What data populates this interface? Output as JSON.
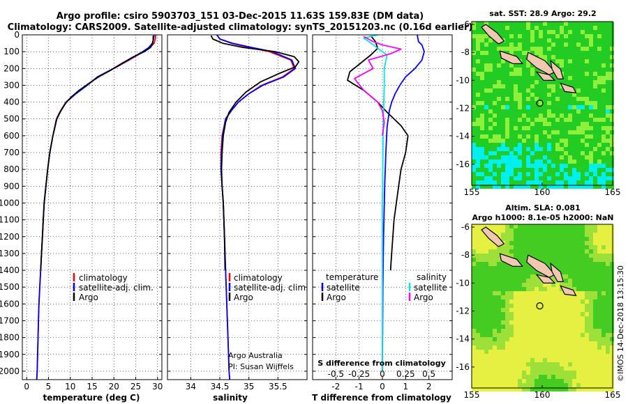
{
  "header": {
    "title_line1": "Argo profile: csiro 5903703_151 03-Dec-2015 11.63S 159.83E (DM data)",
    "title_line2": "Climatology: CARS2009. Satellite-adjusted climatology: synTS_20151203.nc (0.16d earlier)"
  },
  "credits": {
    "line1": "Argo Australia",
    "line2": "PI: Susan Wijffels",
    "imos": "©IMOS 14-Dec-2018 13:15:30"
  },
  "colors": {
    "climatology": "#ff0000",
    "satellite": "#0000ff",
    "argo": "#000000",
    "sal_satellite": "#00e8e8",
    "sal_argo": "#ff00ff"
  },
  "chart_data": [
    {
      "id": "temperature",
      "type": "line",
      "xlabel": "temperature (deg C)",
      "xlim": [
        -1,
        31
      ],
      "xticks": [
        0,
        5,
        10,
        15,
        20,
        25,
        30
      ],
      "ylim": [
        2050,
        0
      ],
      "yticks": [
        0,
        100,
        200,
        300,
        400,
        500,
        600,
        700,
        800,
        900,
        1000,
        1100,
        1200,
        1300,
        1400,
        1500,
        1600,
        1700,
        1800,
        1900,
        2000
      ],
      "grid": true,
      "legend": {
        "position": "lower-center",
        "entries": [
          "climatology",
          "satellite-adj. clim.",
          "Argo"
        ]
      },
      "series": [
        {
          "name": "climatology",
          "color": "#ff0000",
          "points": [
            [
              29.6,
              0
            ],
            [
              29.5,
              25
            ],
            [
              29.2,
              50
            ],
            [
              28.3,
              75
            ],
            [
              26.8,
              100
            ],
            [
              23.5,
              150
            ],
            [
              20.0,
              200
            ],
            [
              16.3,
              250
            ],
            [
              13.8,
              300
            ],
            [
              11.2,
              350
            ],
            [
              9.0,
              400
            ],
            [
              7.8,
              450
            ],
            [
              6.8,
              500
            ],
            [
              6.0,
              600
            ],
            [
              5.3,
              700
            ],
            [
              4.8,
              800
            ],
            [
              4.4,
              900
            ],
            [
              4.0,
              1000
            ],
            [
              3.8,
              1100
            ],
            [
              3.6,
              1200
            ],
            [
              3.4,
              1300
            ],
            [
              3.2,
              1400
            ],
            [
              3.0,
              1500
            ],
            [
              2.8,
              1600
            ],
            [
              2.7,
              1700
            ],
            [
              2.6,
              1800
            ],
            [
              2.5,
              1900
            ],
            [
              2.4,
              2000
            ],
            [
              2.3,
              2050
            ]
          ]
        },
        {
          "name": "satellite-adj. clim.",
          "color": "#0000ff",
          "points": [
            [
              29.2,
              0
            ],
            [
              29.1,
              25
            ],
            [
              28.8,
              50
            ],
            [
              28.0,
              75
            ],
            [
              26.6,
              100
            ],
            [
              23.3,
              150
            ],
            [
              19.9,
              200
            ],
            [
              16.2,
              250
            ],
            [
              13.9,
              300
            ],
            [
              11.3,
              350
            ],
            [
              9.1,
              400
            ],
            [
              7.9,
              450
            ],
            [
              6.9,
              500
            ],
            [
              6.0,
              600
            ],
            [
              5.3,
              700
            ],
            [
              4.8,
              800
            ],
            [
              4.4,
              900
            ],
            [
              4.0,
              1000
            ],
            [
              3.8,
              1100
            ],
            [
              3.6,
              1200
            ],
            [
              3.4,
              1300
            ],
            [
              3.2,
              1400
            ],
            [
              3.0,
              1500
            ],
            [
              2.8,
              1600
            ],
            [
              2.7,
              1700
            ],
            [
              2.6,
              1800
            ],
            [
              2.5,
              1900
            ],
            [
              2.4,
              2000
            ],
            [
              2.3,
              2050
            ]
          ]
        },
        {
          "name": "Argo",
          "color": "#000000",
          "points": [
            [
              29.0,
              5
            ],
            [
              29.0,
              30
            ],
            [
              28.9,
              50
            ],
            [
              28.4,
              75
            ],
            [
              27.0,
              100
            ],
            [
              24.5,
              130
            ],
            [
              21.8,
              170
            ],
            [
              19.3,
              210
            ],
            [
              16.5,
              250
            ],
            [
              14.2,
              290
            ],
            [
              12.0,
              330
            ],
            [
              10.2,
              370
            ],
            [
              8.8,
              410
            ],
            [
              7.6,
              460
            ],
            [
              6.9,
              500
            ],
            [
              6.0,
              600
            ],
            [
              5.3,
              700
            ],
            [
              4.8,
              800
            ],
            [
              4.4,
              900
            ],
            [
              4.0,
              1000
            ],
            [
              3.8,
              1100
            ],
            [
              3.6,
              1200
            ],
            [
              3.4,
              1300
            ],
            [
              3.2,
              1400
            ]
          ]
        }
      ]
    },
    {
      "id": "salinity",
      "type": "line",
      "xlabel": "salinity",
      "xlim": [
        33.6,
        36.0
      ],
      "xticks": [
        34,
        34.5,
        35,
        35.5
      ],
      "xticklabels": [
        "34",
        "34.5",
        "35",
        "35.5"
      ],
      "ylim": [
        2050,
        0
      ],
      "grid": true,
      "legend": {
        "position": "lower-center",
        "entries": [
          "climatology",
          "satellite-adj. clim.",
          "Argo"
        ]
      },
      "series": [
        {
          "name": "climatology",
          "color": "#ff0000",
          "points": [
            [
              34.45,
              0
            ],
            [
              34.5,
              25
            ],
            [
              34.7,
              50
            ],
            [
              35.0,
              75
            ],
            [
              35.35,
              100
            ],
            [
              35.72,
              150
            ],
            [
              35.78,
              200
            ],
            [
              35.58,
              250
            ],
            [
              35.22,
              300
            ],
            [
              35.0,
              350
            ],
            [
              34.82,
              400
            ],
            [
              34.7,
              450
            ],
            [
              34.6,
              500
            ],
            [
              34.54,
              600
            ],
            [
              34.52,
              700
            ],
            [
              34.52,
              800
            ],
            [
              34.54,
              900
            ],
            [
              34.56,
              1000
            ],
            [
              34.58,
              1200
            ],
            [
              34.6,
              1400
            ],
            [
              34.62,
              1600
            ],
            [
              34.64,
              1800
            ],
            [
              34.66,
              2000
            ],
            [
              34.67,
              2050
            ]
          ]
        },
        {
          "name": "satellite-adj. clim.",
          "color": "#0000ff",
          "points": [
            [
              34.45,
              0
            ],
            [
              34.5,
              25
            ],
            [
              34.72,
              50
            ],
            [
              35.05,
              75
            ],
            [
              35.4,
              100
            ],
            [
              35.74,
              150
            ],
            [
              35.8,
              200
            ],
            [
              35.6,
              250
            ],
            [
              35.24,
              300
            ],
            [
              35.0,
              350
            ],
            [
              34.82,
              400
            ],
            [
              34.7,
              450
            ],
            [
              34.6,
              500
            ],
            [
              34.55,
              600
            ],
            [
              34.53,
              700
            ],
            [
              34.52,
              800
            ],
            [
              34.54,
              900
            ],
            [
              34.56,
              1000
            ],
            [
              34.58,
              1200
            ],
            [
              34.6,
              1400
            ],
            [
              34.62,
              1600
            ],
            [
              34.64,
              1800
            ],
            [
              34.66,
              2000
            ],
            [
              34.67,
              2050
            ]
          ]
        },
        {
          "name": "Argo",
          "color": "#000000",
          "points": [
            [
              34.35,
              5
            ],
            [
              34.38,
              25
            ],
            [
              34.55,
              50
            ],
            [
              34.9,
              75
            ],
            [
              35.45,
              100
            ],
            [
              35.78,
              130
            ],
            [
              35.86,
              160
            ],
            [
              35.8,
              190
            ],
            [
              35.52,
              230
            ],
            [
              35.2,
              280
            ],
            [
              34.95,
              340
            ],
            [
              34.78,
              400
            ],
            [
              34.66,
              460
            ],
            [
              34.6,
              520
            ],
            [
              34.56,
              600
            ],
            [
              34.54,
              700
            ],
            [
              34.53,
              800
            ],
            [
              34.54,
              900
            ],
            [
              34.56,
              1000
            ],
            [
              34.58,
              1200
            ],
            [
              34.59,
              1400
            ]
          ]
        }
      ]
    },
    {
      "id": "difference",
      "type": "line",
      "xlabel": "T difference from climatology",
      "xlim": [
        -3,
        3
      ],
      "xticks": [
        -2,
        -1,
        0,
        1,
        2
      ],
      "ylim": [
        2050,
        0
      ],
      "grid": true,
      "top_axis": {
        "label": "S difference from climatology",
        "ticks": [
          -0.5,
          -0.25,
          0,
          0.25,
          0.5
        ],
        "ticklabels": [
          "-0.5",
          "-0.25",
          "0",
          "0.25",
          "0.5"
        ]
      },
      "legend": {
        "position": "lower-center",
        "temperature_header": "temperature",
        "salinity_header": "salinity",
        "entries": [
          "satellite",
          "Argo",
          "satellite",
          "Argo"
        ]
      },
      "series": [
        {
          "name": "satellite",
          "group": "temperature",
          "color": "#0000ff",
          "points": [
            [
              1.5,
              0
            ],
            [
              1.55,
              40
            ],
            [
              1.7,
              60
            ],
            [
              1.8,
              100
            ],
            [
              1.7,
              150
            ],
            [
              1.4,
              200
            ],
            [
              1.0,
              250
            ],
            [
              0.75,
              300
            ],
            [
              0.55,
              350
            ],
            [
              0.4,
              400
            ],
            [
              0.3,
              450
            ],
            [
              0.2,
              550
            ],
            [
              0.15,
              700
            ],
            [
              0.1,
              900
            ],
            [
              0.05,
              1200
            ],
            [
              0.02,
              1500
            ],
            [
              0.0,
              2000
            ]
          ]
        },
        {
          "name": "Argo",
          "group": "temperature",
          "color": "#000000",
          "points": [
            [
              -0.5,
              5
            ],
            [
              -0.3,
              40
            ],
            [
              -0.2,
              80
            ],
            [
              -0.5,
              120
            ],
            [
              -1.4,
              220
            ],
            [
              -1.5,
              270
            ],
            [
              -0.8,
              330
            ],
            [
              -0.2,
              400
            ],
            [
              0.2,
              460
            ],
            [
              0.8,
              540
            ],
            [
              1.1,
              600
            ],
            [
              1.0,
              700
            ],
            [
              0.8,
              800
            ],
            [
              0.7,
              900
            ],
            [
              0.6,
              1000
            ],
            [
              0.5,
              1100
            ],
            [
              0.45,
              1200
            ],
            [
              0.4,
              1300
            ],
            [
              0.35,
              1400
            ]
          ]
        },
        {
          "name": "satellite",
          "group": "salinity",
          "color": "#00e8e8",
          "points": [
            [
              -0.05,
              0
            ],
            [
              -0.2,
              20
            ],
            [
              -0.12,
              50
            ],
            [
              -0.05,
              80
            ],
            [
              0.05,
              120
            ],
            [
              0.02,
              200
            ],
            [
              0.02,
              300
            ],
            [
              0.01,
              500
            ],
            [
              0.0,
              1000
            ],
            [
              0.0,
              2000
            ]
          ]
        },
        {
          "name": "Argo",
          "group": "salinity",
          "color": "#ff00ff",
          "points": [
            [
              -0.2,
              10
            ],
            [
              -0.1,
              40
            ],
            [
              0.0,
              60
            ],
            [
              0.2,
              85
            ],
            [
              0.1,
              110
            ],
            [
              -0.15,
              150
            ],
            [
              -0.1,
              200
            ],
            [
              -0.3,
              260
            ],
            [
              -0.2,
              330
            ],
            [
              -0.05,
              400
            ],
            [
              0.0,
              450
            ],
            [
              0.02,
              520
            ],
            [
              0.0,
              600
            ]
          ]
        }
      ]
    },
    {
      "id": "sst_map",
      "type": "heatmap",
      "title": "sat. SST: 28.9 Argo: 29.2",
      "xlim": [
        155,
        165
      ],
      "xticks": [
        155,
        160,
        165
      ],
      "ylim": [
        -17.5,
        -5.8
      ],
      "yticks": [
        -16,
        -14,
        -12,
        -10,
        -8,
        -6
      ],
      "argo_position": [
        159.83,
        -11.63
      ],
      "colors": {
        "warm": "#22cc22",
        "cool": "#8ef03a",
        "cold": "#00f0f0"
      }
    },
    {
      "id": "sla_map",
      "type": "heatmap",
      "title_line1": "Altim. SLA: 0.081",
      "title_line2": "Argo h1000: 8.1e-05 h2000: NaN",
      "xlim": [
        155,
        165
      ],
      "xticks": [
        155,
        160,
        165
      ],
      "ylim": [
        -17.5,
        -5.8
      ],
      "yticks": [
        -16,
        -14,
        -12,
        -10,
        -8,
        -6
      ],
      "argo_position": [
        159.83,
        -11.63
      ],
      "colors": {
        "low": "#44cc22",
        "high": "#e6f040"
      }
    }
  ]
}
